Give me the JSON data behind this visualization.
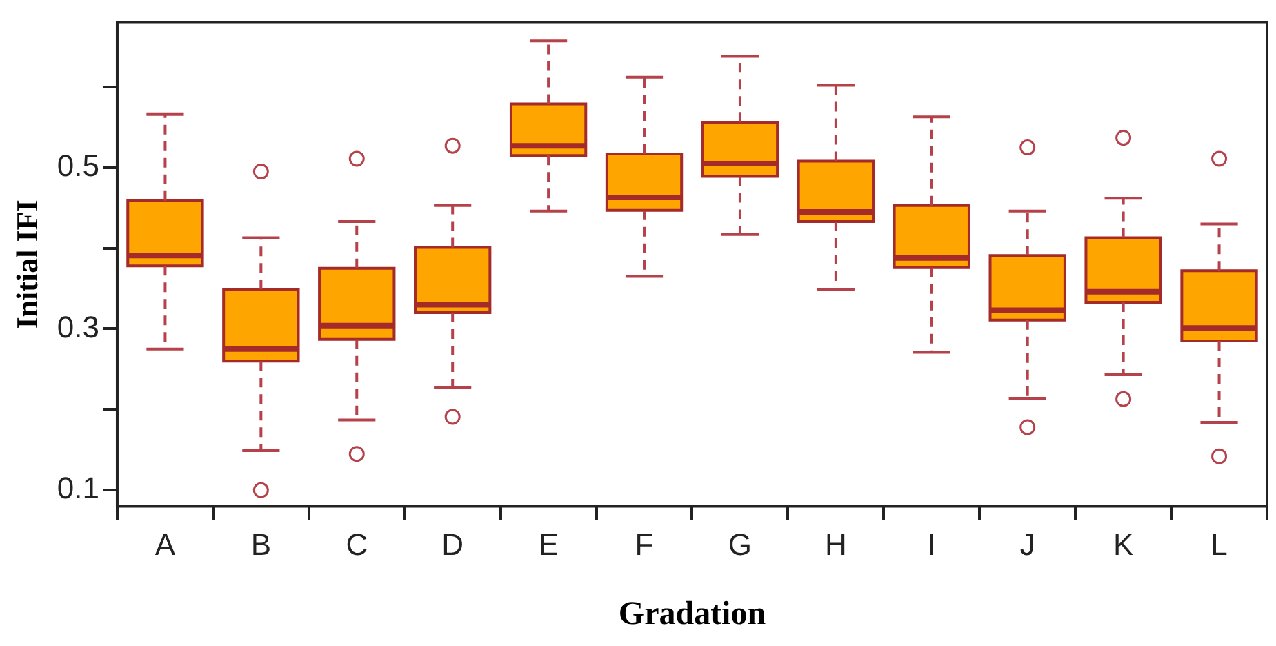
{
  "chart_data": {
    "type": "box",
    "xlabel": "Gradation",
    "ylabel": "Initial IFI",
    "color": "#ffa500",
    "categories": [
      "A",
      "B",
      "C",
      "D",
      "E",
      "F",
      "G",
      "H",
      "I",
      "J",
      "K",
      "L"
    ],
    "ylim": [
      0.08,
      0.68
    ],
    "yticks": [
      0.1,
      {
        "value": 0.2,
        "label": null
      },
      0.3,
      {
        "value": 0.4,
        "label": null
      },
      0.5,
      {
        "value": 0.6,
        "label": null
      }
    ],
    "boxes": [
      {
        "low": 0.275,
        "q1": 0.378,
        "median": 0.391,
        "q3": 0.459,
        "high": 0.566
      },
      {
        "low": 0.149,
        "q1": 0.26,
        "median": 0.275,
        "q3": 0.349,
        "high": 0.413,
        "outliers": [
          0.495,
          0.1
        ]
      },
      {
        "low": 0.187,
        "q1": 0.287,
        "median": 0.304,
        "q3": 0.375,
        "high": 0.433,
        "outliers": [
          0.511,
          0.145
        ]
      },
      {
        "low": 0.227,
        "q1": 0.32,
        "median": 0.33,
        "q3": 0.401,
        "high": 0.453,
        "outliers": [
          0.527,
          0.191
        ]
      },
      {
        "low": 0.446,
        "q1": 0.515,
        "median": 0.527,
        "q3": 0.579,
        "high": 0.657
      },
      {
        "low": 0.365,
        "q1": 0.447,
        "median": 0.463,
        "q3": 0.517,
        "high": 0.612
      },
      {
        "low": 0.417,
        "q1": 0.489,
        "median": 0.505,
        "q3": 0.556,
        "high": 0.638
      },
      {
        "low": 0.349,
        "q1": 0.433,
        "median": 0.445,
        "q3": 0.508,
        "high": 0.602
      },
      {
        "low": 0.271,
        "q1": 0.376,
        "median": 0.388,
        "q3": 0.453,
        "high": 0.563
      },
      {
        "low": 0.214,
        "q1": 0.311,
        "median": 0.323,
        "q3": 0.391,
        "high": 0.446,
        "outliers": [
          0.525,
          0.178
        ]
      },
      {
        "low": 0.243,
        "q1": 0.333,
        "median": 0.346,
        "q3": 0.413,
        "high": 0.462,
        "outliers": [
          0.537,
          0.213
        ]
      },
      {
        "low": 0.184,
        "q1": 0.285,
        "median": 0.301,
        "q3": 0.372,
        "high": 0.43,
        "outliers": [
          0.511,
          0.142
        ]
      }
    ]
  }
}
